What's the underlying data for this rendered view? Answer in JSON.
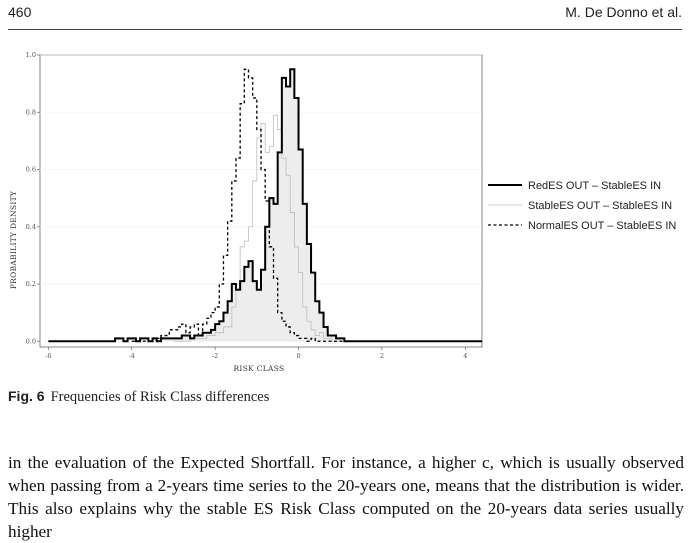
{
  "header": {
    "page_number": "460",
    "authors": "M. De Donno et al."
  },
  "figure": {
    "label": "Fig. 6",
    "caption": "Frequencies of Risk Class differences"
  },
  "body": {
    "paragraph": "in the evaluation of the Expected Shortfall. For instance, a higher c, which is usually observed when passing from a 2-years time series to the 20-years one, means that the distribution is wider. This also explains why the stable ES Risk Class computed on the 20-years data series usually higher"
  },
  "chart_data": {
    "type": "line",
    "step": true,
    "xlabel": "RISK CLASS",
    "ylabel": "PROBABILITY DENSITY",
    "xlim": [
      -6.2,
      4.4
    ],
    "ylim": [
      -0.02,
      1.0
    ],
    "x_ticks": [
      -6,
      -4,
      -2,
      0,
      2,
      4
    ],
    "y_ticks": [
      0.0,
      0.2,
      0.4,
      0.6,
      0.8,
      1.0
    ],
    "x_tick_labels": [
      "-6",
      "-4",
      "-2",
      "0",
      "2",
      "4"
    ],
    "y_tick_labels": [
      "0.0",
      "0.2",
      "0.4",
      "0.6",
      "0.8",
      "1.0"
    ],
    "legend_position": "right",
    "series": [
      {
        "name": "RedES OUT – StableES IN",
        "style": "solid-thick",
        "fill": true,
        "color": "#000000",
        "x": [
          -6.0,
          -5.8,
          -5.2,
          -4.8,
          -4.6,
          -4.4,
          -4.2,
          -4.1,
          -4.0,
          -3.9,
          -3.8,
          -3.7,
          -3.6,
          -3.5,
          -3.4,
          -3.3,
          -3.2,
          -3.1,
          -3.0,
          -2.9,
          -2.8,
          -2.7,
          -2.6,
          -2.5,
          -2.4,
          -2.3,
          -2.2,
          -2.1,
          -2.0,
          -1.9,
          -1.8,
          -1.7,
          -1.6,
          -1.5,
          -1.4,
          -1.3,
          -1.2,
          -1.1,
          -1.0,
          -0.9,
          -0.8,
          -0.7,
          -0.6,
          -0.5,
          -0.4,
          -0.3,
          -0.2,
          -0.1,
          0.0,
          0.1,
          0.2,
          0.3,
          0.4,
          0.5,
          0.6,
          0.7,
          0.8,
          0.9,
          1.0,
          1.1,
          1.2,
          1.3,
          1.4,
          1.6,
          4.4
        ],
        "y": [
          0.0,
          0.0,
          0.0,
          0.0,
          0.0,
          0.01,
          0.0,
          0.01,
          0.01,
          0.0,
          0.01,
          0.01,
          0.0,
          0.01,
          0.0,
          0.01,
          0.01,
          0.01,
          0.01,
          0.01,
          0.02,
          0.02,
          0.01,
          0.02,
          0.02,
          0.03,
          0.03,
          0.04,
          0.06,
          0.07,
          0.1,
          0.14,
          0.2,
          0.18,
          0.21,
          0.26,
          0.28,
          0.21,
          0.18,
          0.25,
          0.4,
          0.5,
          0.48,
          0.66,
          0.92,
          0.89,
          0.95,
          0.85,
          0.67,
          0.48,
          0.34,
          0.24,
          0.14,
          0.1,
          0.05,
          0.02,
          0.02,
          0.01,
          0.01,
          0.0,
          0.0,
          0.0,
          0.0,
          0.0,
          0.0
        ]
      },
      {
        "name": "StableES OUT – StableES IN",
        "style": "solid-thin",
        "color": "#bdbdbd",
        "x": [
          -3.0,
          -2.6,
          -2.2,
          -2.0,
          -1.8,
          -1.6,
          -1.5,
          -1.4,
          -1.3,
          -1.2,
          -1.1,
          -1.0,
          -0.9,
          -0.8,
          -0.7,
          -0.6,
          -0.5,
          -0.4,
          -0.3,
          -0.2,
          -0.1,
          0.0,
          0.1,
          0.2,
          0.3,
          0.4,
          0.5,
          0.6,
          0.8,
          1.0
        ],
        "y": [
          0.0,
          0.01,
          0.02,
          0.03,
          0.05,
          0.12,
          0.2,
          0.33,
          0.35,
          0.4,
          0.56,
          0.71,
          0.76,
          0.66,
          0.68,
          0.79,
          0.74,
          0.64,
          0.58,
          0.45,
          0.33,
          0.24,
          0.12,
          0.07,
          0.04,
          0.02,
          0.03,
          0.01,
          0.0,
          0.0
        ]
      },
      {
        "name": "NormalES OUT – StableES IN",
        "style": "dashed",
        "color": "#000000",
        "x": [
          -4.0,
          -3.5,
          -3.3,
          -3.1,
          -2.9,
          -2.8,
          -2.7,
          -2.6,
          -2.5,
          -2.4,
          -2.3,
          -2.2,
          -2.1,
          -2.0,
          -1.9,
          -1.8,
          -1.7,
          -1.6,
          -1.5,
          -1.4,
          -1.3,
          -1.2,
          -1.1,
          -1.0,
          -0.9,
          -0.8,
          -0.7,
          -0.6,
          -0.5,
          -0.4,
          -0.3,
          -0.2,
          -0.1,
          0.0,
          0.1,
          0.2,
          0.3,
          0.4,
          0.6,
          0.8,
          1.0,
          1.2
        ],
        "y": [
          0.0,
          0.01,
          0.02,
          0.04,
          0.05,
          0.06,
          0.03,
          0.05,
          0.06,
          0.02,
          0.06,
          0.08,
          0.1,
          0.12,
          0.2,
          0.3,
          0.42,
          0.56,
          0.64,
          0.83,
          0.95,
          0.92,
          0.85,
          0.74,
          0.6,
          0.49,
          0.33,
          0.22,
          0.1,
          0.07,
          0.05,
          0.03,
          0.02,
          0.01,
          0.01,
          0.0,
          0.01,
          0.0,
          0.0,
          0.0,
          0.0,
          0.0
        ]
      }
    ]
  }
}
